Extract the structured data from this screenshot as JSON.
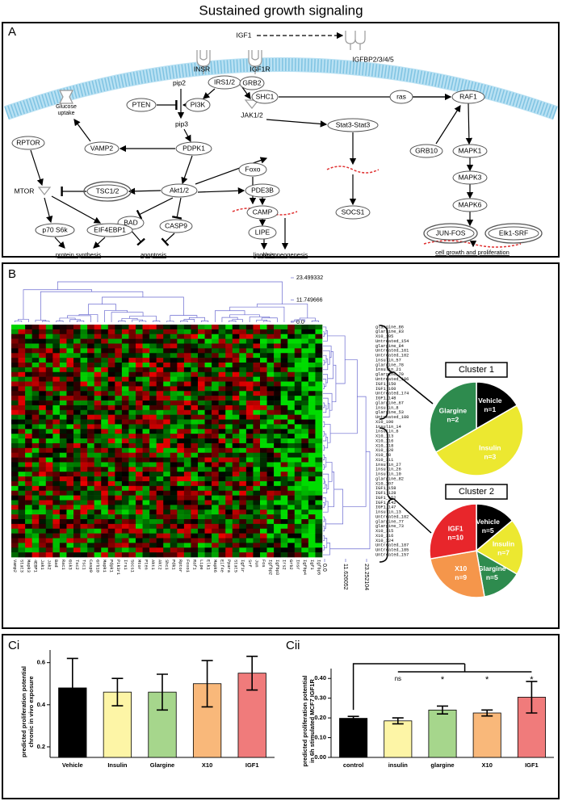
{
  "title": "Sustained growth signaling",
  "panel_a": {
    "label": "A",
    "nodes": [
      "IGF1",
      "IGFBP2/3/4/5",
      "INSR",
      "IGF1R",
      "IRS1/2",
      "GRB2",
      "SHC1",
      "pip2",
      "PTEN",
      "PI3K",
      "pip3",
      "JAK1/2",
      "Stat3-Stat3",
      "ras",
      "RAF1",
      "GRB10",
      "MAPK1",
      "MAPK3",
      "MAPK6",
      "JUN-FOS",
      "Elk1-SRF",
      "Glucose",
      "uptake",
      "RPTOR",
      "VAMP2",
      "PDPK1",
      "MTOR",
      "TSC1/2",
      "Akt1/2",
      "Foxo",
      "PDE3B",
      "CAMP",
      "LIPE",
      "BAD",
      "CASP9",
      "p70 S6k",
      "EIF4EBP1",
      "SOCS1",
      "protein synthesis",
      "apoptosis",
      "lipolysis",
      "gluconeogenesis",
      "cell growth and proliferation"
    ]
  },
  "panel_b": {
    "label": "B",
    "top_ticks": [
      23.499332,
      11.749666,
      {
        "value": 0,
        "label": "0.0"
      }
    ],
    "side_ticks": [
      {
        "value": 0,
        "label": "0.0"
      },
      11.626052,
      23.252104
    ],
    "row_labels": [
      "glargine_86",
      "glargine_83",
      "X10_105",
      "Untreated_154",
      "glargine_84",
      "Untreated_161",
      "Untreated_102",
      "insulin_57",
      "glargine_78",
      "insulin_21",
      "glargine_70",
      "Untreated_186",
      "IGF1_150",
      "IGF1_160",
      "Untreated_174",
      "IGF1_148",
      "glargine_67",
      "insulin_8",
      "glargine_53",
      "Untreated_188",
      "X10_100",
      "insulin_14",
      "insulin_6",
      "X10_113",
      "X10_116",
      "X10_118",
      "X10_120",
      "X10_58",
      "X10_111",
      "insulin_27",
      "insulin_26",
      "insulin_10",
      "glargine_82",
      "X10_107",
      "IGF1_158",
      "IGF1_128",
      "IGF1_152",
      "IGF1_142",
      "IGF1_147",
      "insulin_13",
      "Untreated_182",
      "glargine_77",
      "glargine_73",
      "X10_115",
      "X10_116",
      "X10_124",
      "Untreated_187",
      "Untreated_185",
      "Untreated_157"
    ],
    "column_labels": [
      "Vamp2",
      "Stat3",
      "Mapk3",
      "4EBP1",
      "Jak1",
      "Jak2",
      "Bad",
      "Rac1",
      "Gsk3",
      "Tsc2",
      "Tsc1",
      "Casp9",
      "Grb10",
      "Mapk1",
      "Pdpk1",
      "Pik3r1",
      "Irs1",
      "Socs1",
      "Mtor",
      "Pten",
      "Akt1",
      "Akt2",
      "Shc1",
      "Pdk1",
      "Rptor",
      "Foxo1",
      "Raf1",
      "Lipe",
      "Elk1",
      "Mapk6",
      "Eif4e",
      "Ppara",
      "Stat5",
      "Igf1r",
      "Srf",
      "Jun",
      "Fos",
      "Igfbp2",
      "Igfbp3",
      "Irs2",
      "Grb2",
      "Insr",
      "Igfbp4",
      "Igf1",
      "Igfbp5"
    ],
    "clusters": [
      {
        "type": "pie",
        "title": "Cluster 1",
        "labels": [
          "Vehicle",
          "Insulin",
          "Glargine"
        ],
        "values": [
          1,
          3,
          2
        ],
        "value_labels": [
          "n=1",
          "n=3",
          "n=2"
        ],
        "colors": [
          "#000000",
          "#ece830",
          "#2e8b4e"
        ]
      },
      {
        "type": "pie",
        "title": "Cluster 2",
        "labels": [
          "Vehicle",
          "Insulin",
          "Glargine",
          "X10",
          "IGF1"
        ],
        "values": [
          5,
          7,
          5,
          9,
          10
        ],
        "value_labels": [
          "n=5",
          "n=7",
          "n=5",
          "n=9",
          "n=10"
        ],
        "colors": [
          "#000000",
          "#ece830",
          "#2e8b4e",
          "#f5964b",
          "#e8262b"
        ]
      }
    ]
  },
  "chart_data": [
    {
      "type": "bar",
      "label": "Ci",
      "ylabel": [
        "predicted proliferation potential",
        "chronic in vivo exposure"
      ],
      "categories": [
        "Vehicle",
        "Insulin",
        "Glargine",
        "X10",
        "IGF1"
      ],
      "values": [
        0.48,
        0.46,
        0.46,
        0.5,
        0.55
      ],
      "errors": [
        0.14,
        0.065,
        0.085,
        0.11,
        0.08
      ],
      "colors": [
        "#000000",
        "#fdf5a6",
        "#a6d68c",
        "#f9b87a",
        "#f07b7b"
      ],
      "ylim": [
        0.15,
        0.66
      ],
      "yticks": [
        0.2,
        0.4,
        0.6
      ]
    },
    {
      "type": "bar",
      "label": "Cii",
      "ylabel": [
        "predicted proliferation potential",
        "in 6h stimulated MCF7 IGF1R"
      ],
      "categories": [
        "control",
        "insulin",
        "glargine",
        "X10",
        "IGF1"
      ],
      "values": [
        0.198,
        0.185,
        0.24,
        0.225,
        0.305
      ],
      "errors": [
        0.01,
        0.015,
        0.02,
        0.015,
        0.08
      ],
      "colors": [
        "#000000",
        "#fdf5a6",
        "#a6d68c",
        "#f9b87a",
        "#f07b7b"
      ],
      "annotations": [
        null,
        "ns",
        "*",
        "*",
        "*"
      ],
      "ylim": [
        0,
        0.45
      ],
      "yticks": [
        {
          "value": 0,
          "label": "0.00"
        },
        {
          "value": 0.1,
          "label": "0.10"
        },
        {
          "value": 0.2,
          "label": "0.20"
        },
        {
          "value": 0.3,
          "label": "0.30"
        },
        {
          "value": 0.4,
          "label": "0.40"
        }
      ]
    }
  ]
}
